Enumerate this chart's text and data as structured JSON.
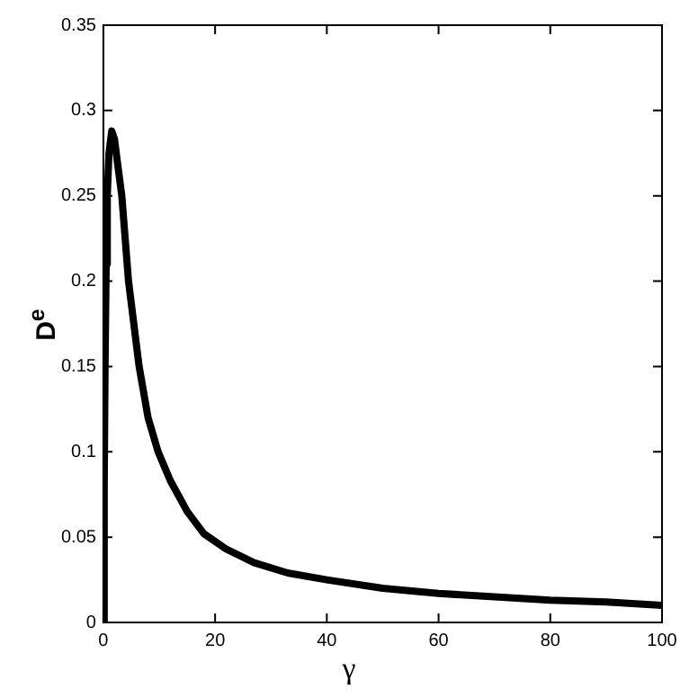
{
  "chart_data": {
    "type": "line",
    "xlabel": "γ",
    "ylabel": "D$^{e}$",
    "xlim": [
      0,
      100
    ],
    "ylim": [
      0,
      0.35
    ],
    "xticks": [
      0,
      20,
      40,
      60,
      80,
      100
    ],
    "yticks": [
      0,
      0.05,
      0.1,
      0.15,
      0.2,
      0.25,
      0.3,
      0.35
    ],
    "grid": false,
    "legend": false,
    "marker": "none",
    "line_style": "solid",
    "series": [
      {
        "color": "#000000",
        "x": [
          0,
          0.15,
          0.3,
          0.5,
          0.7,
          1,
          1.5,
          2,
          2.5,
          3.3,
          4.5,
          6.4,
          8,
          9.8,
          12,
          15,
          18,
          22,
          27,
          33,
          40,
          50,
          60,
          70,
          80,
          90,
          100
        ],
        "values": [
          0,
          0.08,
          0.15,
          0.21,
          0.25,
          0.275,
          0.288,
          0.283,
          0.27,
          0.25,
          0.2,
          0.15,
          0.12,
          0.1,
          0.083,
          0.065,
          0.052,
          0.043,
          0.035,
          0.029,
          0.025,
          0.02,
          0.017,
          0.015,
          0.013,
          0.012,
          0.01
        ]
      }
    ]
  }
}
